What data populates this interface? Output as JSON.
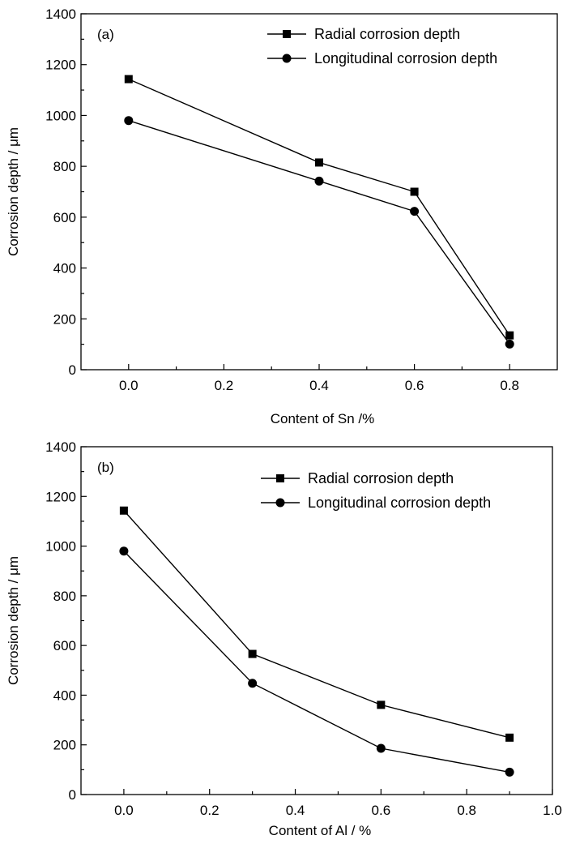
{
  "chart_data": [
    {
      "type": "line",
      "panel_label": "(a)",
      "xlabel": "Content of Sn /%",
      "ylabel": "Corrosion depth / μm",
      "xlim": [
        -0.1,
        0.9
      ],
      "ylim": [
        0,
        1400
      ],
      "xticks": [
        0.0,
        0.2,
        0.4,
        0.6,
        0.8
      ],
      "xtick_labels": [
        "0.0",
        "0.2",
        "0.4",
        "0.6",
        "0.8"
      ],
      "yticks": [
        0,
        200,
        400,
        600,
        800,
        1000,
        1200,
        1400
      ],
      "ytick_labels": [
        "0",
        "200",
        "400",
        "600",
        "800",
        "1000",
        "1200",
        "1400"
      ],
      "legend_position": "top-right",
      "grid": false,
      "x": [
        0.0,
        0.4,
        0.6,
        0.8
      ],
      "series": [
        {
          "name": "Radial corrosion depth",
          "marker": "square",
          "values": [
            1143,
            815,
            700,
            135
          ]
        },
        {
          "name": "Longitudinal corrosion depth",
          "marker": "circle",
          "values": [
            980,
            742,
            623,
            101
          ]
        }
      ]
    },
    {
      "type": "line",
      "panel_label": "(b)",
      "xlabel": "Content of Al / %",
      "ylabel": "Corrosion depth / μm",
      "xlim": [
        -0.1,
        1.0
      ],
      "ylim": [
        0,
        1400
      ],
      "xticks": [
        0.0,
        0.2,
        0.4,
        0.6,
        0.8,
        1.0
      ],
      "xtick_labels": [
        "0.0",
        "0.2",
        "0.4",
        "0.6",
        "0.8",
        "1.0"
      ],
      "yticks": [
        0,
        200,
        400,
        600,
        800,
        1000,
        1200,
        1400
      ],
      "ytick_labels": [
        "0",
        "200",
        "400",
        "600",
        "800",
        "1000",
        "1200",
        "1400"
      ],
      "legend_position": "top-right",
      "grid": false,
      "x": [
        0.0,
        0.3,
        0.6,
        0.9
      ],
      "series": [
        {
          "name": "Radial corrosion depth",
          "marker": "square",
          "values": [
            1143,
            566,
            361,
            229
          ]
        },
        {
          "name": "Longitudinal corrosion depth",
          "marker": "circle",
          "values": [
            980,
            448,
            186,
            90
          ]
        }
      ]
    }
  ]
}
